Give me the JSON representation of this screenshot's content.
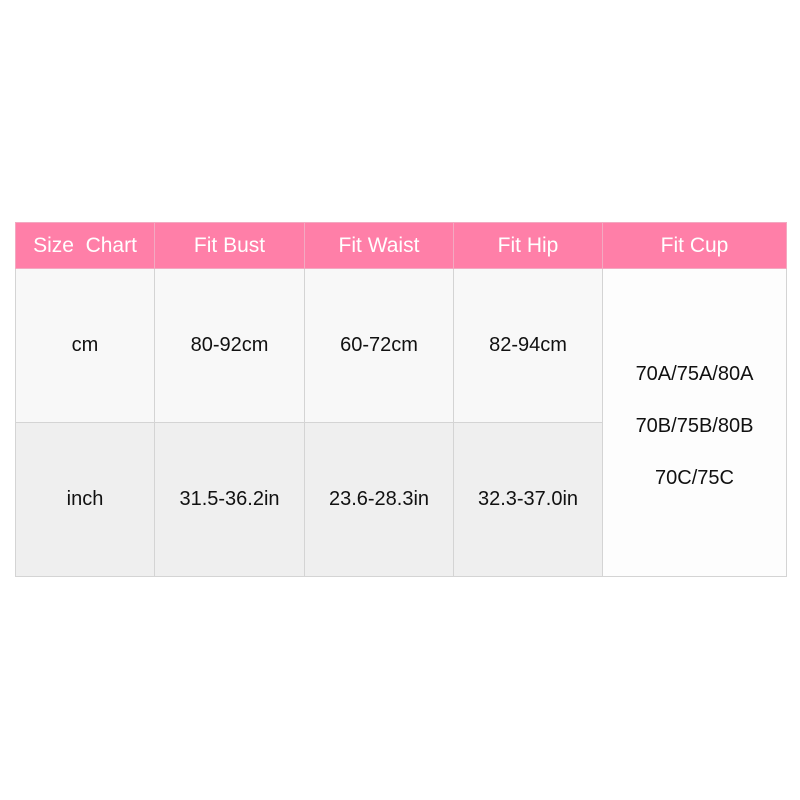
{
  "header": [
    "Size  Chart",
    "Fit Bust",
    "Fit Waist",
    "Fit Hip",
    "Fit Cup"
  ],
  "rows": [
    {
      "unit": "cm",
      "bust": "80-92cm",
      "waist": "60-72cm",
      "hip": "82-94cm"
    },
    {
      "unit": "inch",
      "bust": "31.5-36.2in",
      "waist": "23.6-28.3in",
      "hip": "32.3-37.0in"
    }
  ],
  "cup_sizes": [
    "70A/75A/80A",
    "70B/75B/80B",
    "70C/75C"
  ],
  "colors": {
    "header_bg": "#ff7fa8",
    "header_text": "#ffffff"
  }
}
